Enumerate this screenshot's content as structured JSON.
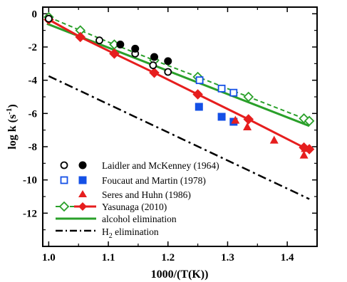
{
  "chart_data": {
    "type": "scatter",
    "xlabel": "1000/(T(K))",
    "ylabel": "log k (s",
    "ylabel_sup": "-1",
    "ylabel_close": ")",
    "xlim": [
      0.99,
      1.45
    ],
    "ylim": [
      -14,
      0.4
    ],
    "x_ticks": [
      1.0,
      1.1,
      1.2,
      1.3,
      1.4
    ],
    "x_tick_labels": [
      "1.0",
      "1.1",
      "1.2",
      "1.3",
      "1.4"
    ],
    "y_ticks": [
      0,
      -2,
      -4,
      -6,
      -8,
      -10,
      -12
    ],
    "y_tick_labels": [
      "0",
      "-2",
      "-4",
      "-6",
      "-8",
      "-10",
      "-12"
    ],
    "grid": false,
    "legend_position": "bottom-left",
    "colors": {
      "black": "#000000",
      "blue": "#1450e6",
      "red": "#e61e1e",
      "green": "#2aa02a"
    },
    "series": [
      {
        "name": "Laidler and McKenney (1964)",
        "kind": "points",
        "color": "#000000",
        "open_marker": "circle",
        "filled_marker": "circle",
        "open_points": [
          [
            1.0,
            -0.3
          ],
          [
            1.085,
            -1.6
          ],
          [
            1.145,
            -2.4
          ],
          [
            1.175,
            -3.1
          ],
          [
            1.2,
            -3.5
          ]
        ],
        "filled_points": [
          [
            1.12,
            -1.85
          ],
          [
            1.145,
            -2.1
          ],
          [
            1.177,
            -2.6
          ],
          [
            1.2,
            -2.85
          ]
        ]
      },
      {
        "name": "Foucaut and Martin (1978)",
        "kind": "points",
        "color": "#1450e6",
        "open_marker": "square",
        "filled_marker": "square",
        "open_points": [
          [
            1.253,
            -4.0
          ],
          [
            1.29,
            -4.5
          ],
          [
            1.31,
            -4.75
          ]
        ],
        "filled_points": [
          [
            1.252,
            -5.6
          ],
          [
            1.29,
            -6.2
          ],
          [
            1.31,
            -6.5
          ]
        ]
      },
      {
        "name": "Seres and Huhn (1986)",
        "kind": "points",
        "color": "#e61e1e",
        "filled_marker": "triangle",
        "filled_points": [
          [
            1.313,
            -6.4
          ],
          [
            1.333,
            -6.8
          ],
          [
            1.378,
            -7.6
          ],
          [
            1.428,
            -8.5
          ],
          [
            1.43,
            -8.1
          ]
        ]
      },
      {
        "name": "Yasunaga (2010)",
        "kind": "line-markers",
        "colors": [
          "#2aa02a",
          "#e61e1e"
        ],
        "green_dashed": [
          [
            1.0,
            -0.2
          ],
          [
            1.053,
            -1.0
          ],
          [
            1.11,
            -1.85
          ],
          [
            1.177,
            -2.8
          ],
          [
            1.25,
            -3.8
          ],
          [
            1.335,
            -5.0
          ],
          [
            1.428,
            -6.3
          ],
          [
            1.437,
            -6.45
          ]
        ],
        "red_solid": [
          [
            1.0,
            -0.35
          ],
          [
            1.053,
            -1.4
          ],
          [
            1.11,
            -2.4
          ],
          [
            1.177,
            -3.55
          ],
          [
            1.25,
            -4.85
          ],
          [
            1.335,
            -6.35
          ],
          [
            1.428,
            -8.05
          ],
          [
            1.437,
            -8.15
          ]
        ]
      },
      {
        "name": "alcohol elimination",
        "kind": "line",
        "color": "#2aa02a",
        "points": [
          [
            0.997,
            -0.6
          ],
          [
            1.437,
            -6.75
          ]
        ]
      },
      {
        "name": "H",
        "name_sub": "2",
        "name_rest": " elimination",
        "kind": "line",
        "style": "dashdot",
        "color": "#000000",
        "points": [
          [
            1.0,
            -3.75
          ],
          [
            1.437,
            -11.15
          ]
        ]
      }
    ]
  }
}
